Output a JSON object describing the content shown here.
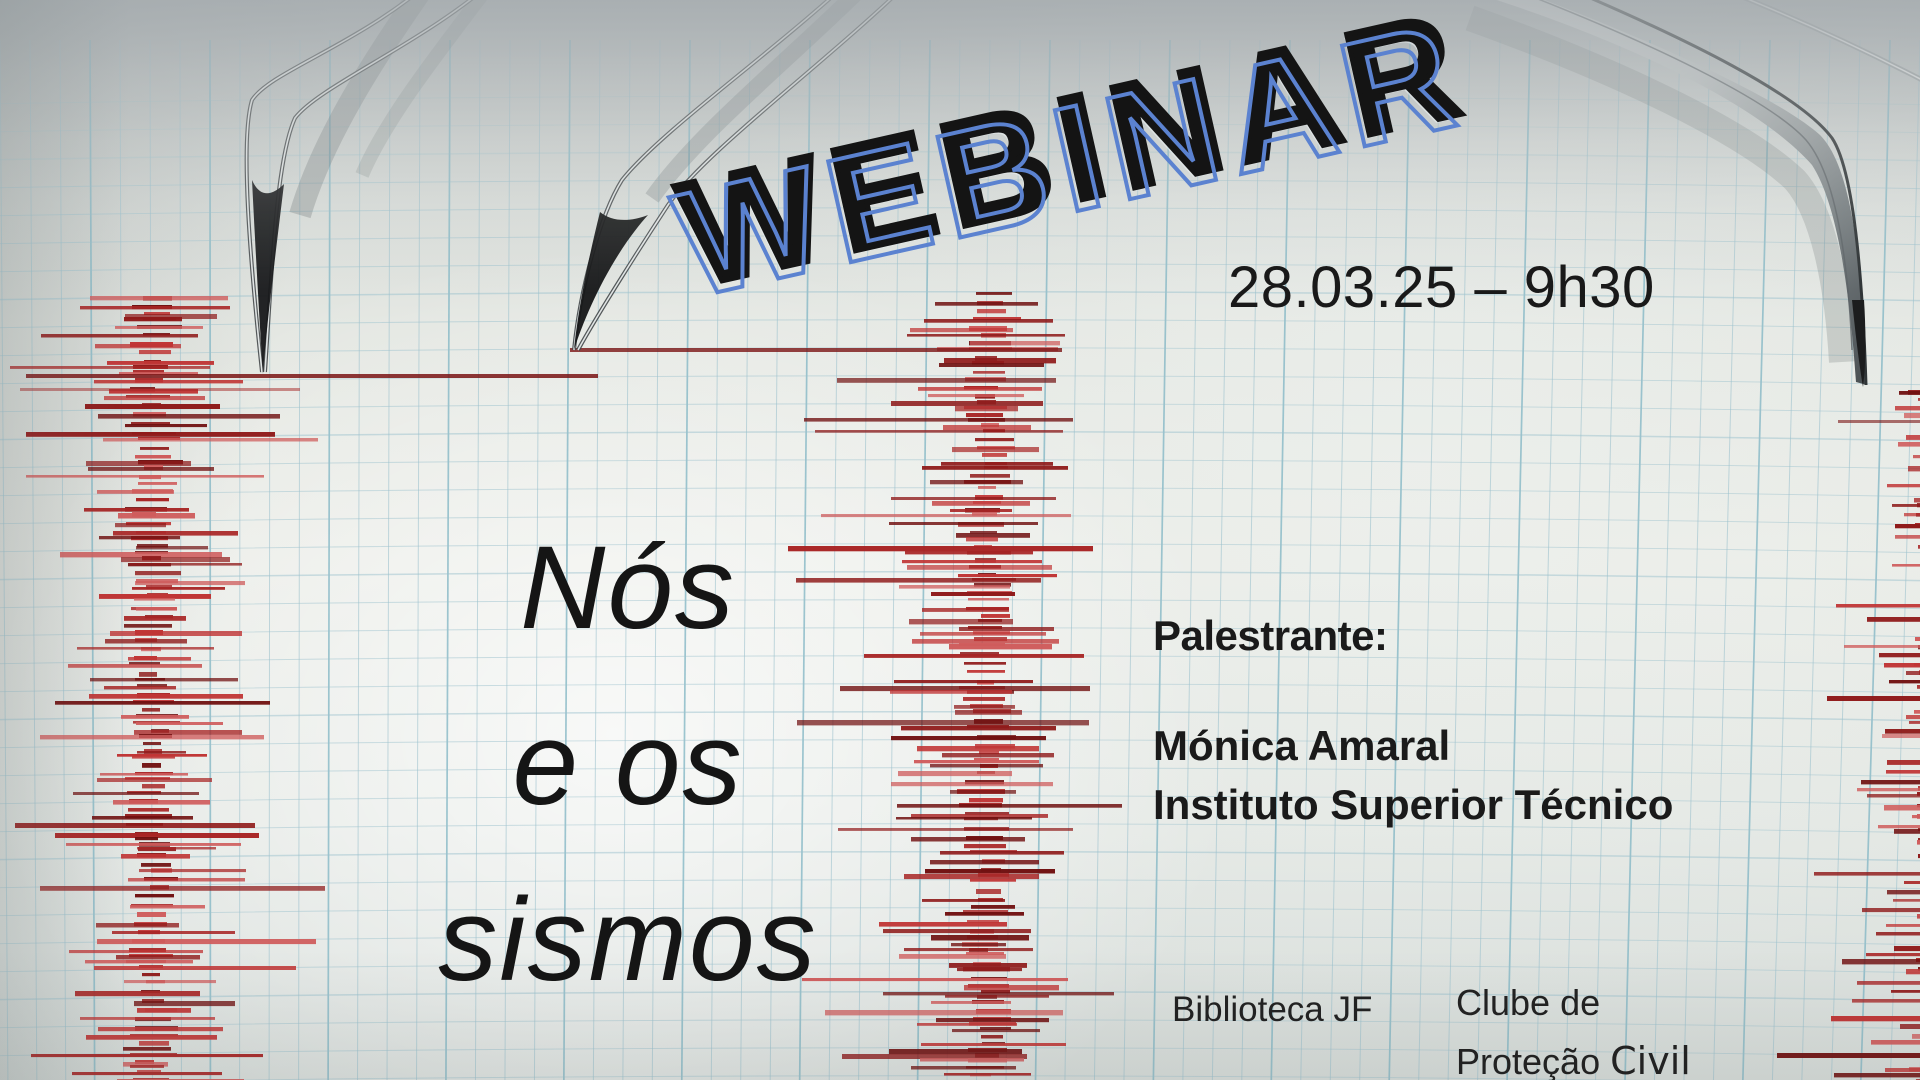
{
  "poster": {
    "event_type_label": "WEBINAR",
    "datetime": "28.03.25 – 9h30",
    "title_lines": [
      "Nós",
      "e os",
      "sismos"
    ],
    "speaker": {
      "heading": "Palestrante:",
      "name": "Mónica Amaral",
      "affiliation": "Instituto Superior Técnico"
    },
    "organizers": {
      "library": "Biblioteca JF",
      "club_line1": "Clube de",
      "club_line2_a": "Proteção",
      "club_line2_b": "Civil"
    }
  },
  "colors": {
    "accent_blue": "#5b82d0",
    "text_black": "#1b1b1b",
    "grid_teal": "#9cc2cd",
    "grid_teal_strong": "#86b8c6",
    "trace_reds": [
      "#701010",
      "#8f1a1a",
      "#a82525",
      "#c03535",
      "#cf5c5c"
    ],
    "baseline_red": "#7a1414",
    "paper_light": "#edeee9",
    "paper_gray_top": "#b2b7b9",
    "needle_metal_light": "#e9ecec",
    "needle_metal_dark": "#4a5053"
  }
}
